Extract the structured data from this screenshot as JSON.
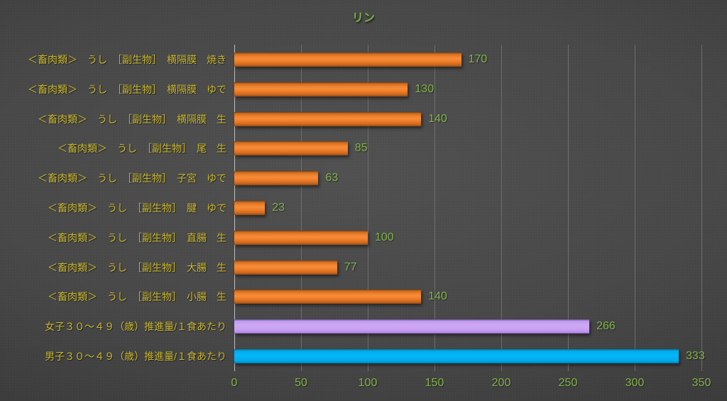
{
  "chart_data": {
    "type": "bar",
    "orientation": "horizontal",
    "title": "リン",
    "categories": [
      "＜畜肉類＞　うし　［副生物］　横隔膜　焼き",
      "＜畜肉類＞　うし　［副生物］　横隔膜　ゆで",
      "＜畜肉類＞　うし　［副生物］　横隔膜　生",
      "＜畜肉類＞　うし　［副生物］　尾　生",
      "＜畜肉類＞　うし　［副生物］　子宮　ゆで",
      "＜畜肉類＞　うし　［副生物］　腱　ゆで",
      "＜畜肉類＞　うし　［副生物］　直腸　生",
      "＜畜肉類＞　うし　［副生物］　大腸　生",
      "＜畜肉類＞　うし　［副生物］　小腸　生",
      "女子３０～４９（歳）推進量/１食あたり",
      "男子３０～４９（歳）推進量/１食あたり"
    ],
    "values": [
      170,
      130,
      140,
      85,
      63,
      23,
      100,
      77,
      140,
      266,
      333
    ],
    "bar_styles": [
      "orange",
      "orange",
      "orange",
      "orange",
      "orange",
      "orange",
      "orange",
      "orange",
      "orange",
      "purple",
      "blue"
    ],
    "xlim": [
      0,
      350
    ],
    "x_ticks": [
      0,
      50,
      100,
      150,
      200,
      250,
      300,
      350
    ],
    "grid": "vertical",
    "legend": "none",
    "colors": {
      "bar_orange": "#ee7d28",
      "bar_purple": "#c9a2f2",
      "bar_blue": "#00b0f0",
      "title_text": "#76b041",
      "category_text": "#c9b72b",
      "value_text": "#82b449",
      "tick_text": "#82b449",
      "gridline": "#6d6d6d",
      "axis_line": "#bdbdbd",
      "background": "#454545"
    }
  }
}
